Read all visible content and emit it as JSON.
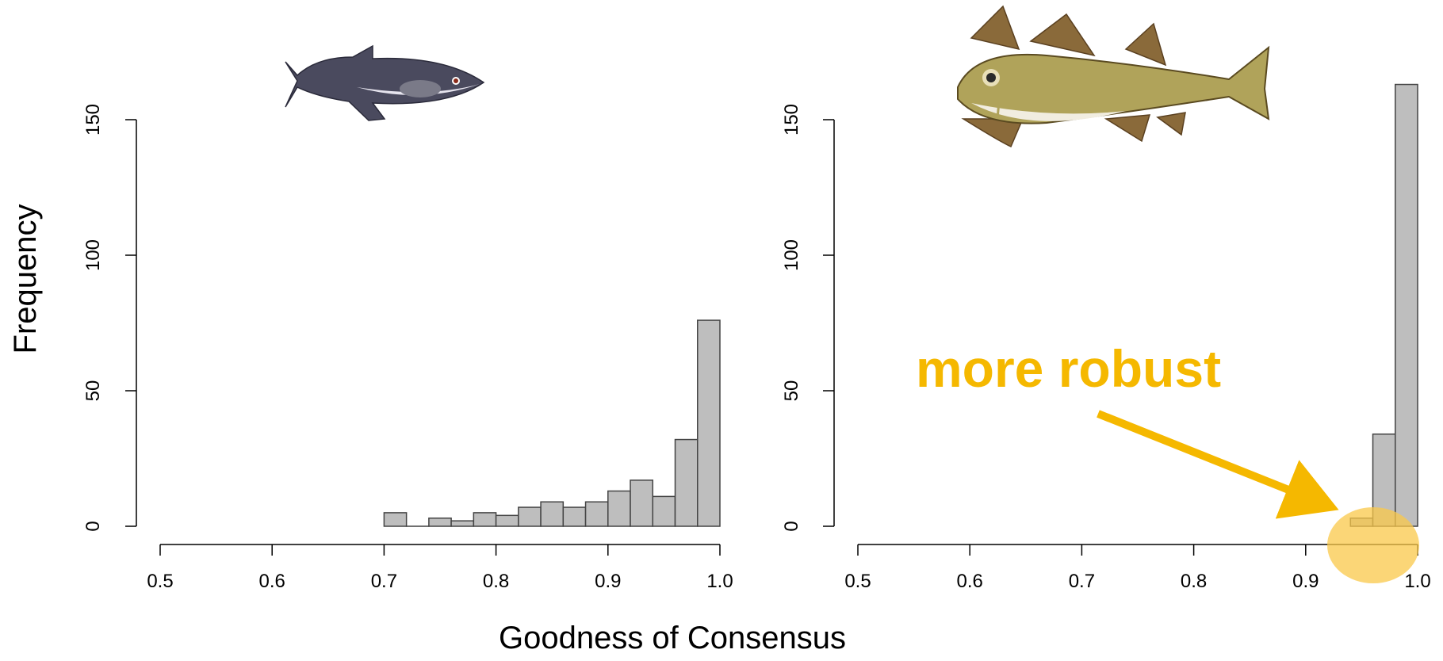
{
  "figure": {
    "xlabel": "Goodness of Consensus",
    "ylabel": "Frequency"
  },
  "annotation": {
    "text": "more robust",
    "color": "#F5B800",
    "highlight_color": "#F9C84A"
  },
  "bar_style": {
    "fill": "#BEBEBE",
    "stroke": "#444444"
  },
  "chart_data": [
    {
      "type": "bar",
      "fish_icon": "haddock-silhouette-icon",
      "xlim": [
        0.5,
        1.0
      ],
      "ylim": [
        0,
        150
      ],
      "xticks": [
        "0.5",
        "0.6",
        "0.7",
        "0.8",
        "0.9",
        "1.0"
      ],
      "yticks": [
        "0",
        "50",
        "100",
        "150"
      ],
      "bin_width": 0.02,
      "bins": [
        0.7,
        0.72,
        0.74,
        0.76,
        0.78,
        0.8,
        0.82,
        0.84,
        0.86,
        0.88,
        0.9,
        0.92,
        0.94,
        0.96,
        0.98
      ],
      "values": [
        5,
        0,
        3,
        2,
        5,
        4,
        7,
        9,
        7,
        9,
        13,
        17,
        11,
        32,
        76
      ]
    },
    {
      "type": "bar",
      "fish_icon": "cod-icon",
      "xlim": [
        0.5,
        1.0
      ],
      "ylim": [
        0,
        150
      ],
      "xticks": [
        "0.5",
        "0.6",
        "0.7",
        "0.8",
        "0.9",
        "1.0"
      ],
      "yticks": [
        "0",
        "50",
        "100",
        "150"
      ],
      "bin_width": 0.02,
      "bins": [
        0.94,
        0.96,
        0.98
      ],
      "values": [
        3,
        34,
        163
      ]
    }
  ]
}
